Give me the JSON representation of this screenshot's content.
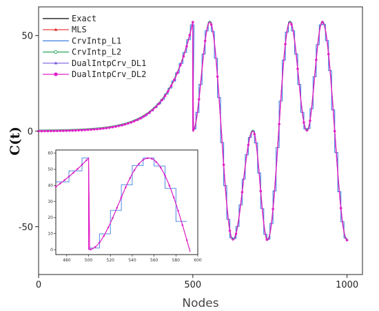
{
  "chart_data": {
    "type": "line",
    "xlabel": "Nodes",
    "ylabel": "C(t)",
    "xlim": [
      0,
      1050
    ],
    "ylim": [
      -75,
      65
    ],
    "xticks": [
      "0",
      "500",
      "1000"
    ],
    "yticks": [
      "-50",
      "0",
      "50"
    ],
    "legend_position": "top-left",
    "series": [
      {
        "name": "Exact",
        "color": "#000000",
        "marker": "none"
      },
      {
        "name": "MLS",
        "color": "#e8282a",
        "marker": "triangle"
      },
      {
        "name": "CrvIntp_L1",
        "color": "#3a7ee0",
        "marker": "none"
      },
      {
        "name": "CrvIntp_L2",
        "color": "#2aa35a",
        "marker": "circle"
      },
      {
        "name": "DualIntpCrv_DL1",
        "color": "#7a5be0",
        "marker": "triangle"
      },
      {
        "name": "DualIntpCrv_DL2",
        "color": "#e020c8",
        "marker": "circle"
      }
    ],
    "curve_description": {
      "segment_1": {
        "x": [
          0,
          500
        ],
        "shape": "exponential rise from 0 to ~57"
      },
      "segment_2": {
        "x": [
          500,
          1000
        ],
        "shape": "oscillation",
        "peaks": [
          {
            "x": 555,
            "y": 57
          },
          {
            "x": 695,
            "y": 0
          },
          {
            "x": 815,
            "y": 57
          },
          {
            "x": 920,
            "y": 57
          }
        ],
        "troughs": [
          {
            "x": 500,
            "y": 0
          },
          {
            "x": 630,
            "y": -57
          },
          {
            "x": 742,
            "y": -57
          },
          {
            "x": 870,
            "y": 0
          },
          {
            "x": 1000,
            "y": -57
          }
        ]
      }
    },
    "inset": {
      "xlim": [
        470,
        600
      ],
      "ylim": [
        -3,
        62
      ],
      "xticks": [
        "480",
        "500",
        "520",
        "540",
        "560",
        "580",
        "600"
      ],
      "yticks": [
        "0",
        "10",
        "20",
        "30",
        "40",
        "50",
        "60"
      ]
    }
  }
}
